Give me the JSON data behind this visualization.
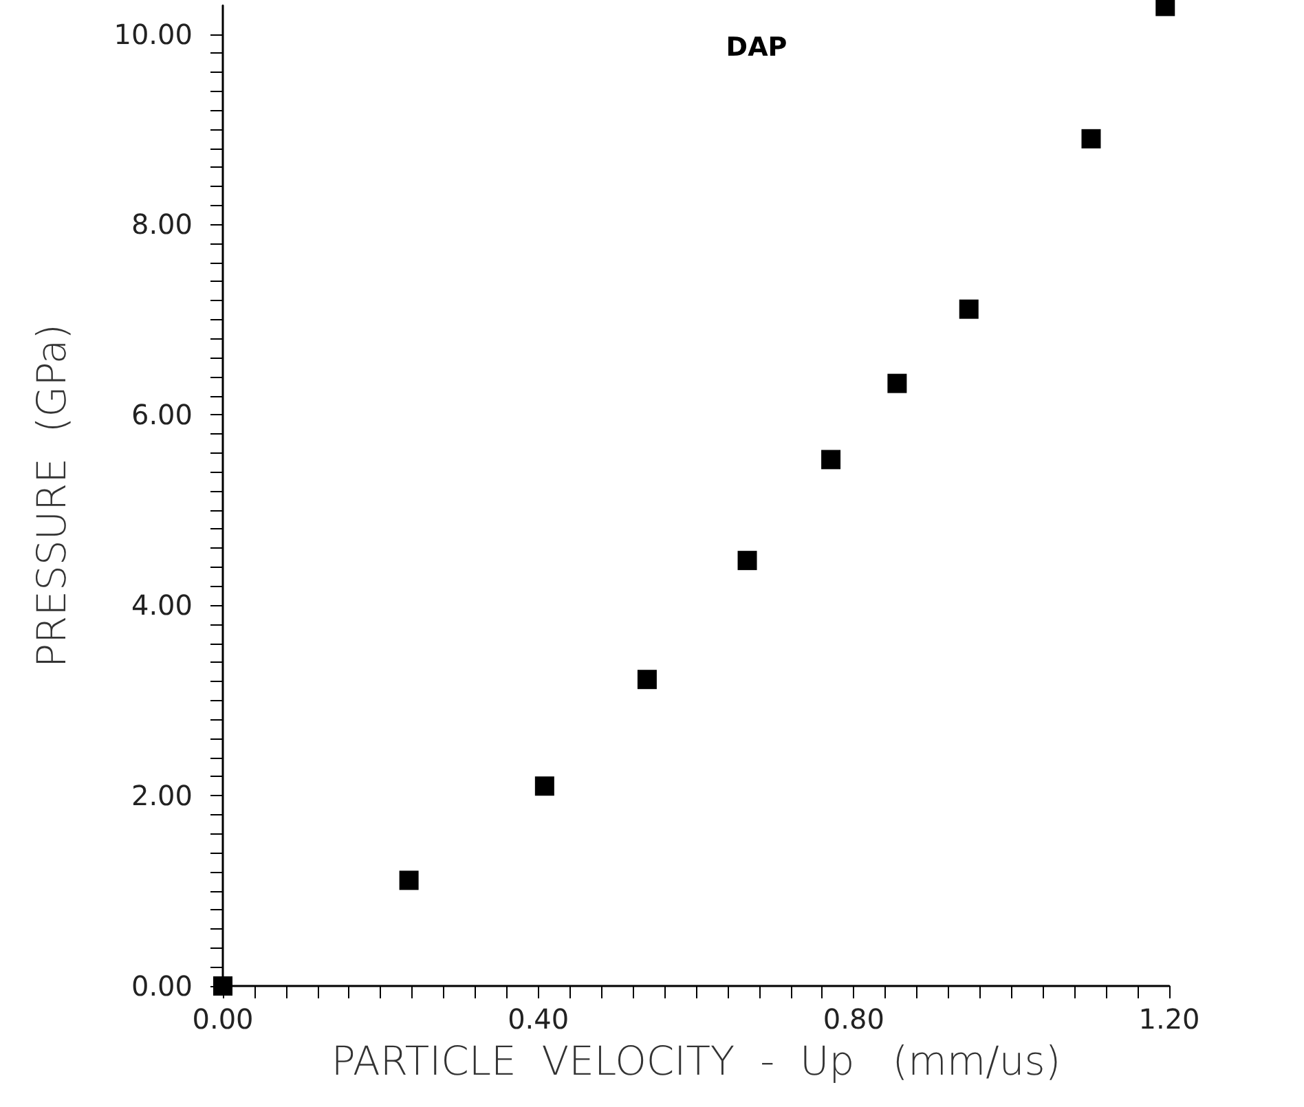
{
  "chart_data": {
    "type": "scatter",
    "title": "DAP",
    "xlabel": "PARTICLE  VELOCITY  -  Up   (mm/us)",
    "ylabel": "PRESSURE  (GPa)",
    "x": [
      0,
      0.236,
      0.408,
      0.538,
      0.665,
      0.771,
      0.855,
      0.946,
      1.101,
      1.195
    ],
    "series": [
      {
        "color": "#000000",
        "values": [
          0,
          1.11,
          2.1,
          3.22,
          4.47,
          5.53,
          6.33,
          7.11,
          8.9,
          10.29
        ]
      }
    ],
    "xlim": [
      0,
      1.2
    ],
    "ylim": [
      0,
      10.3
    ],
    "xticks": [
      {
        "value": 0,
        "label": "0.00"
      },
      {
        "value": 0.04,
        "label": null
      },
      {
        "value": 0.08,
        "label": null
      },
      {
        "value": 0.12,
        "label": null
      },
      {
        "value": 0.16,
        "label": null
      },
      {
        "value": 0.2,
        "label": null
      },
      {
        "value": 0.24,
        "label": null
      },
      {
        "value": 0.28,
        "label": null
      },
      {
        "value": 0.32,
        "label": null
      },
      {
        "value": 0.36,
        "label": null
      },
      {
        "value": 0.4,
        "label": "0.40"
      },
      {
        "value": 0.44,
        "label": null
      },
      {
        "value": 0.48,
        "label": null
      },
      {
        "value": 0.52,
        "label": null
      },
      {
        "value": 0.56,
        "label": null
      },
      {
        "value": 0.6,
        "label": null
      },
      {
        "value": 0.64,
        "label": null
      },
      {
        "value": 0.68,
        "label": null
      },
      {
        "value": 0.72,
        "label": null
      },
      {
        "value": 0.76,
        "label": null
      },
      {
        "value": 0.8,
        "label": "0.80"
      },
      {
        "value": 0.84,
        "label": null
      },
      {
        "value": 0.88,
        "label": null
      },
      {
        "value": 0.92,
        "label": null
      },
      {
        "value": 0.96,
        "label": null
      },
      {
        "value": 1.0,
        "label": null
      },
      {
        "value": 1.04,
        "label": null
      },
      {
        "value": 1.08,
        "label": null
      },
      {
        "value": 1.12,
        "label": null
      },
      {
        "value": 1.16,
        "label": null
      },
      {
        "value": 1.2,
        "label": "1.20"
      }
    ],
    "yticks": [
      {
        "value": 0,
        "label": "0.00"
      },
      {
        "value": 0.2,
        "label": null
      },
      {
        "value": 0.4,
        "label": null
      },
      {
        "value": 0.6,
        "label": null
      },
      {
        "value": 0.8,
        "label": null
      },
      {
        "value": 1.0,
        "label": null
      },
      {
        "value": 1.2,
        "label": null
      },
      {
        "value": 1.4,
        "label": null
      },
      {
        "value": 1.6,
        "label": null
      },
      {
        "value": 1.8,
        "label": null
      },
      {
        "value": 2,
        "label": "2.00"
      },
      {
        "value": 2.2,
        "label": null
      },
      {
        "value": 2.4,
        "label": null
      },
      {
        "value": 2.6,
        "label": null
      },
      {
        "value": 2.8,
        "label": null
      },
      {
        "value": 3.0,
        "label": null
      },
      {
        "value": 3.2,
        "label": null
      },
      {
        "value": 3.4,
        "label": null
      },
      {
        "value": 3.6,
        "label": null
      },
      {
        "value": 3.8,
        "label": null
      },
      {
        "value": 4,
        "label": "4.00"
      },
      {
        "value": 4.2,
        "label": null
      },
      {
        "value": 4.4,
        "label": null
      },
      {
        "value": 4.6,
        "label": null
      },
      {
        "value": 4.8,
        "label": null
      },
      {
        "value": 5.0,
        "label": null
      },
      {
        "value": 5.2,
        "label": null
      },
      {
        "value": 5.4,
        "label": null
      },
      {
        "value": 5.6,
        "label": null
      },
      {
        "value": 5.8,
        "label": null
      },
      {
        "value": 6,
        "label": "6.00"
      },
      {
        "value": 6.2,
        "label": null
      },
      {
        "value": 6.4,
        "label": null
      },
      {
        "value": 6.6,
        "label": null
      },
      {
        "value": 6.8,
        "label": null
      },
      {
        "value": 7.0,
        "label": null
      },
      {
        "value": 7.2,
        "label": null
      },
      {
        "value": 7.4,
        "label": null
      },
      {
        "value": 7.6,
        "label": null
      },
      {
        "value": 7.8,
        "label": null
      },
      {
        "value": 8,
        "label": "8.00"
      },
      {
        "value": 8.2,
        "label": null
      },
      {
        "value": 8.4,
        "label": null
      },
      {
        "value": 8.6,
        "label": null
      },
      {
        "value": 8.8,
        "label": null
      },
      {
        "value": 9.0,
        "label": null
      },
      {
        "value": 9.2,
        "label": null
      },
      {
        "value": 9.4,
        "label": null
      },
      {
        "value": 9.6,
        "label": null
      },
      {
        "value": 9.8,
        "label": null
      },
      {
        "value": 10,
        "label": "10.00"
      }
    ],
    "marker": "square",
    "grid": false
  }
}
